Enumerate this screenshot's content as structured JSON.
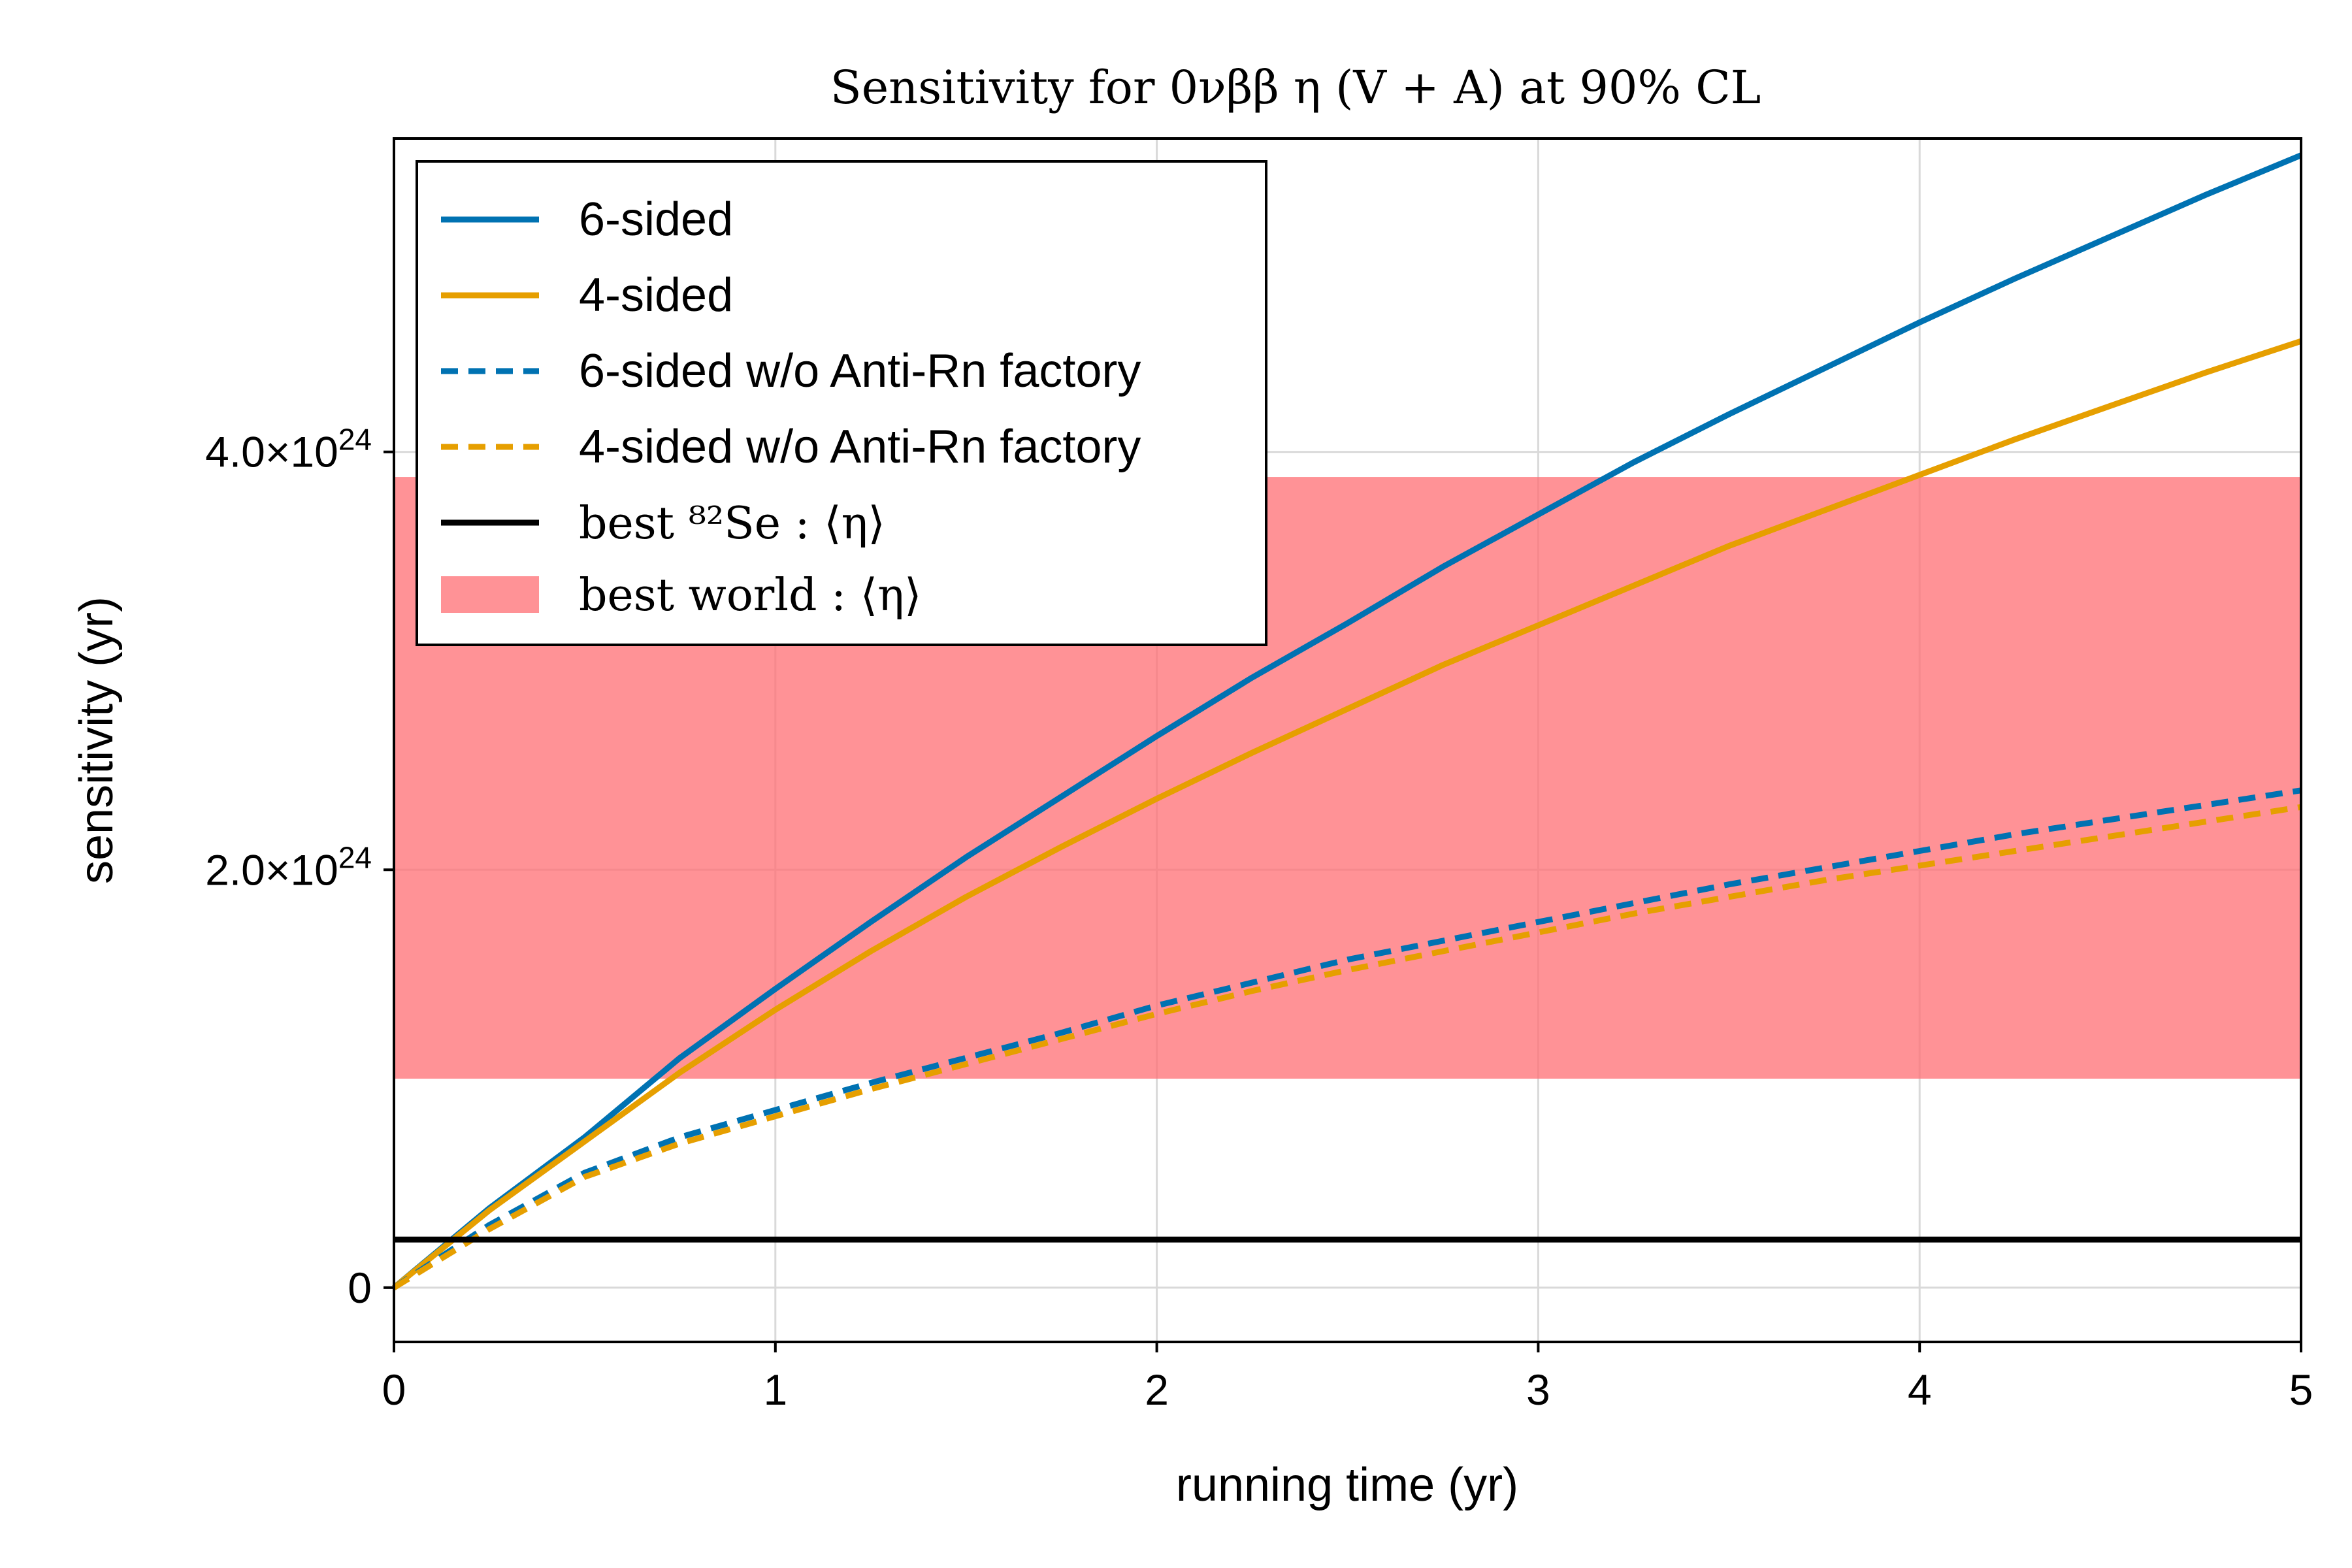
{
  "chart_data": {
    "type": "line",
    "title": "Sensitivity for 0νββ η (V + A) at 90% CL",
    "xlabel": "running time (yr)",
    "ylabel": "sensitivity (yr)",
    "xlim": [
      0,
      5
    ],
    "ylim": [
      -2.6e+23,
      5.5e+24
    ],
    "xticks": [
      {
        "value": 0,
        "label": "0"
      },
      {
        "value": 1,
        "label": "1"
      },
      {
        "value": 2,
        "label": "2"
      },
      {
        "value": 3,
        "label": "3"
      },
      {
        "value": 4,
        "label": "4"
      },
      {
        "value": 5,
        "label": "5"
      }
    ],
    "yticks": [
      {
        "value": 0,
        "label": "0",
        "base": "0",
        "exp": ""
      },
      {
        "value": 2e+24,
        "label": "2.0×10^24",
        "base": "2.0×10",
        "exp": "24"
      },
      {
        "value": 4e+24,
        "label": "4.0×10^24",
        "base": "4.0×10",
        "exp": "24"
      }
    ],
    "grid": true,
    "legend_position": "top-left",
    "x": [
      0,
      0.25,
      0.5,
      0.75,
      1.0,
      1.25,
      1.5,
      1.75,
      2.0,
      2.25,
      2.5,
      2.75,
      3.0,
      3.25,
      3.5,
      3.75,
      4.0,
      4.25,
      4.5,
      4.75,
      5.0
    ],
    "series": [
      {
        "name": "6-sided",
        "style": "solid",
        "color": "#0072B2",
        "values": [
          0,
          3.8e+23,
          7.2e+23,
          1.1e+24,
          1.43e+24,
          1.75e+24,
          2.06e+24,
          2.35e+24,
          2.64e+24,
          2.92e+24,
          3.18e+24,
          3.45e+24,
          3.7e+24,
          3.95e+24,
          4.18e+24,
          4.4e+24,
          4.62e+24,
          4.83e+24,
          5.03e+24,
          5.23e+24,
          5.42e+24
        ]
      },
      {
        "name": "4-sided",
        "style": "solid",
        "color": "#E69F00",
        "values": [
          0,
          3.7e+23,
          7e+23,
          1.03e+24,
          1.33e+24,
          1.61e+24,
          1.87e+24,
          2.11e+24,
          2.34e+24,
          2.56e+24,
          2.77e+24,
          2.98e+24,
          3.17e+24,
          3.36e+24,
          3.55e+24,
          3.72e+24,
          3.89e+24,
          4.06e+24,
          4.22e+24,
          4.38e+24,
          4.53e+24
        ]
      },
      {
        "name": "6-sided w/o Anti-Rn factory",
        "style": "dashed",
        "color": "#0072B2",
        "values": [
          0,
          3e+23,
          5.5e+23,
          7.2e+23,
          8.5e+23,
          9.8e+23,
          1.1e+24,
          1.22e+24,
          1.35e+24,
          1.46e+24,
          1.57e+24,
          1.66e+24,
          1.75e+24,
          1.84e+24,
          1.93e+24,
          2.01e+24,
          2.09e+24,
          2.17e+24,
          2.24e+24,
          2.31e+24,
          2.38e+24
        ]
      },
      {
        "name": "4-sided w/o Anti-Rn factory",
        "style": "dashed",
        "color": "#E69F00",
        "values": [
          0,
          2.8e+23,
          5.3e+23,
          6.9e+23,
          8.2e+23,
          9.5e+23,
          1.07e+24,
          1.19e+24,
          1.31e+24,
          1.42e+24,
          1.52e+24,
          1.61e+24,
          1.7e+24,
          1.79e+24,
          1.87e+24,
          1.95e+24,
          2.02e+24,
          2.09e+24,
          2.16e+24,
          2.23e+24,
          2.3e+24
        ]
      }
    ],
    "hline": {
      "name": "best ⁸²Se : ⟨η⟩",
      "value": 2.3e+23,
      "color": "#000000"
    },
    "band": {
      "name": "best world : ⟨η⟩",
      "ymin": 1e+24,
      "ymax": 3.88e+24,
      "color": "#FF6E73"
    }
  }
}
